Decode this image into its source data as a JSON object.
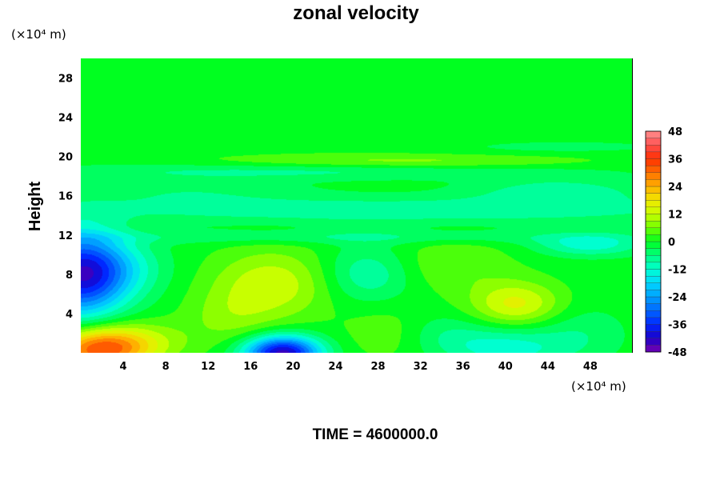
{
  "chart_data": {
    "type": "heatmap",
    "title": "zonal velocity",
    "ylabel": "Height",
    "xunit": "(×10⁴ m)",
    "yunit": "(×10⁴ m)",
    "xlim": [
      0,
      52
    ],
    "ylim": [
      0,
      30
    ],
    "xticks": [
      4,
      8,
      12,
      16,
      20,
      24,
      28,
      32,
      36,
      40,
      44,
      48
    ],
    "yticks": [
      4,
      8,
      12,
      16,
      20,
      24,
      28
    ],
    "colorbar": {
      "range": [
        -48,
        48
      ],
      "ticks": [
        48,
        36,
        24,
        12,
        0,
        -12,
        -24,
        -36,
        -48
      ],
      "colors": {
        "-48": "#7a00b0",
        "-42": "#1a00c8",
        "-36": "#0028ff",
        "-30": "#0066ff",
        "-24": "#00a0ff",
        "-18": "#00d8ff",
        "-12": "#00ffd0",
        "-6": "#00ff80",
        "0": "#00ff20",
        "6": "#70ff00",
        "12": "#c8ff00",
        "18": "#f0e800",
        "24": "#ffb000",
        "30": "#ff7000",
        "36": "#ff3000",
        "42": "#ff5050",
        "48": "#ff9090"
      }
    },
    "background_value": 0,
    "features": [
      {
        "x": 0.0,
        "y": 8.0,
        "value": -40,
        "sx": 3.0,
        "sy": 3.0
      },
      {
        "x": 4.0,
        "y": 8.5,
        "value": -8,
        "sx": 3.0,
        "sy": 2.0
      },
      {
        "x": 1.5,
        "y": 0.3,
        "value": 28,
        "sx": 3.0,
        "sy": 1.5
      },
      {
        "x": 5.0,
        "y": 1.0,
        "value": 12,
        "sx": 3.5,
        "sy": 1.5
      },
      {
        "x": 19.0,
        "y": 0.0,
        "value": -44,
        "sx": 2.5,
        "sy": 1.2
      },
      {
        "x": 18.0,
        "y": 7.0,
        "value": 13,
        "sx": 4.0,
        "sy": 2.5
      },
      {
        "x": 14.0,
        "y": 3.5,
        "value": 6,
        "sx": 3.0,
        "sy": 2.0
      },
      {
        "x": 27.0,
        "y": 8.0,
        "value": -10,
        "sx": 3.0,
        "sy": 2.0
      },
      {
        "x": 29.0,
        "y": 2.0,
        "value": 5,
        "sx": 3.0,
        "sy": 2.0
      },
      {
        "x": 35.0,
        "y": 9.0,
        "value": 6,
        "sx": 4.0,
        "sy": 2.0
      },
      {
        "x": 41.0,
        "y": 5.0,
        "value": 15,
        "sx": 3.0,
        "sy": 1.6
      },
      {
        "x": 40.0,
        "y": 0.5,
        "value": -12,
        "sx": 4.0,
        "sy": 1.5
      },
      {
        "x": 34.0,
        "y": 2.0,
        "value": -5,
        "sx": 3.0,
        "sy": 1.5
      },
      {
        "x": 47.0,
        "y": 2.0,
        "value": -5,
        "sx": 3.0,
        "sy": 2.0
      },
      {
        "x": 48.0,
        "y": 11.0,
        "value": -12,
        "sx": 3.5,
        "sy": 0.8
      },
      {
        "x": 25.0,
        "y": 11.8,
        "value": -6,
        "sx": 20.0,
        "sy": 0.5
      },
      {
        "x": 30.0,
        "y": 14.5,
        "value": -9,
        "sx": 24.0,
        "sy": 1.0
      },
      {
        "x": 45.0,
        "y": 16.5,
        "value": -8,
        "sx": 6.0,
        "sy": 1.0
      },
      {
        "x": 10.0,
        "y": 16.5,
        "value": -5,
        "sx": 8.0,
        "sy": 1.0
      },
      {
        "x": 20.0,
        "y": 18.5,
        "value": -7,
        "sx": 18.0,
        "sy": 0.6
      },
      {
        "x": 30.0,
        "y": 19.5,
        "value": 7,
        "sx": 12.0,
        "sy": 0.5
      },
      {
        "x": 45.0,
        "y": 21.0,
        "value": -4,
        "sx": 8.0,
        "sy": 0.5
      },
      {
        "x": 26.0,
        "y": 26.0,
        "value": 2,
        "sx": 20.0,
        "sy": 4.0
      }
    ]
  },
  "time_label": "TIME = 4600000.0"
}
